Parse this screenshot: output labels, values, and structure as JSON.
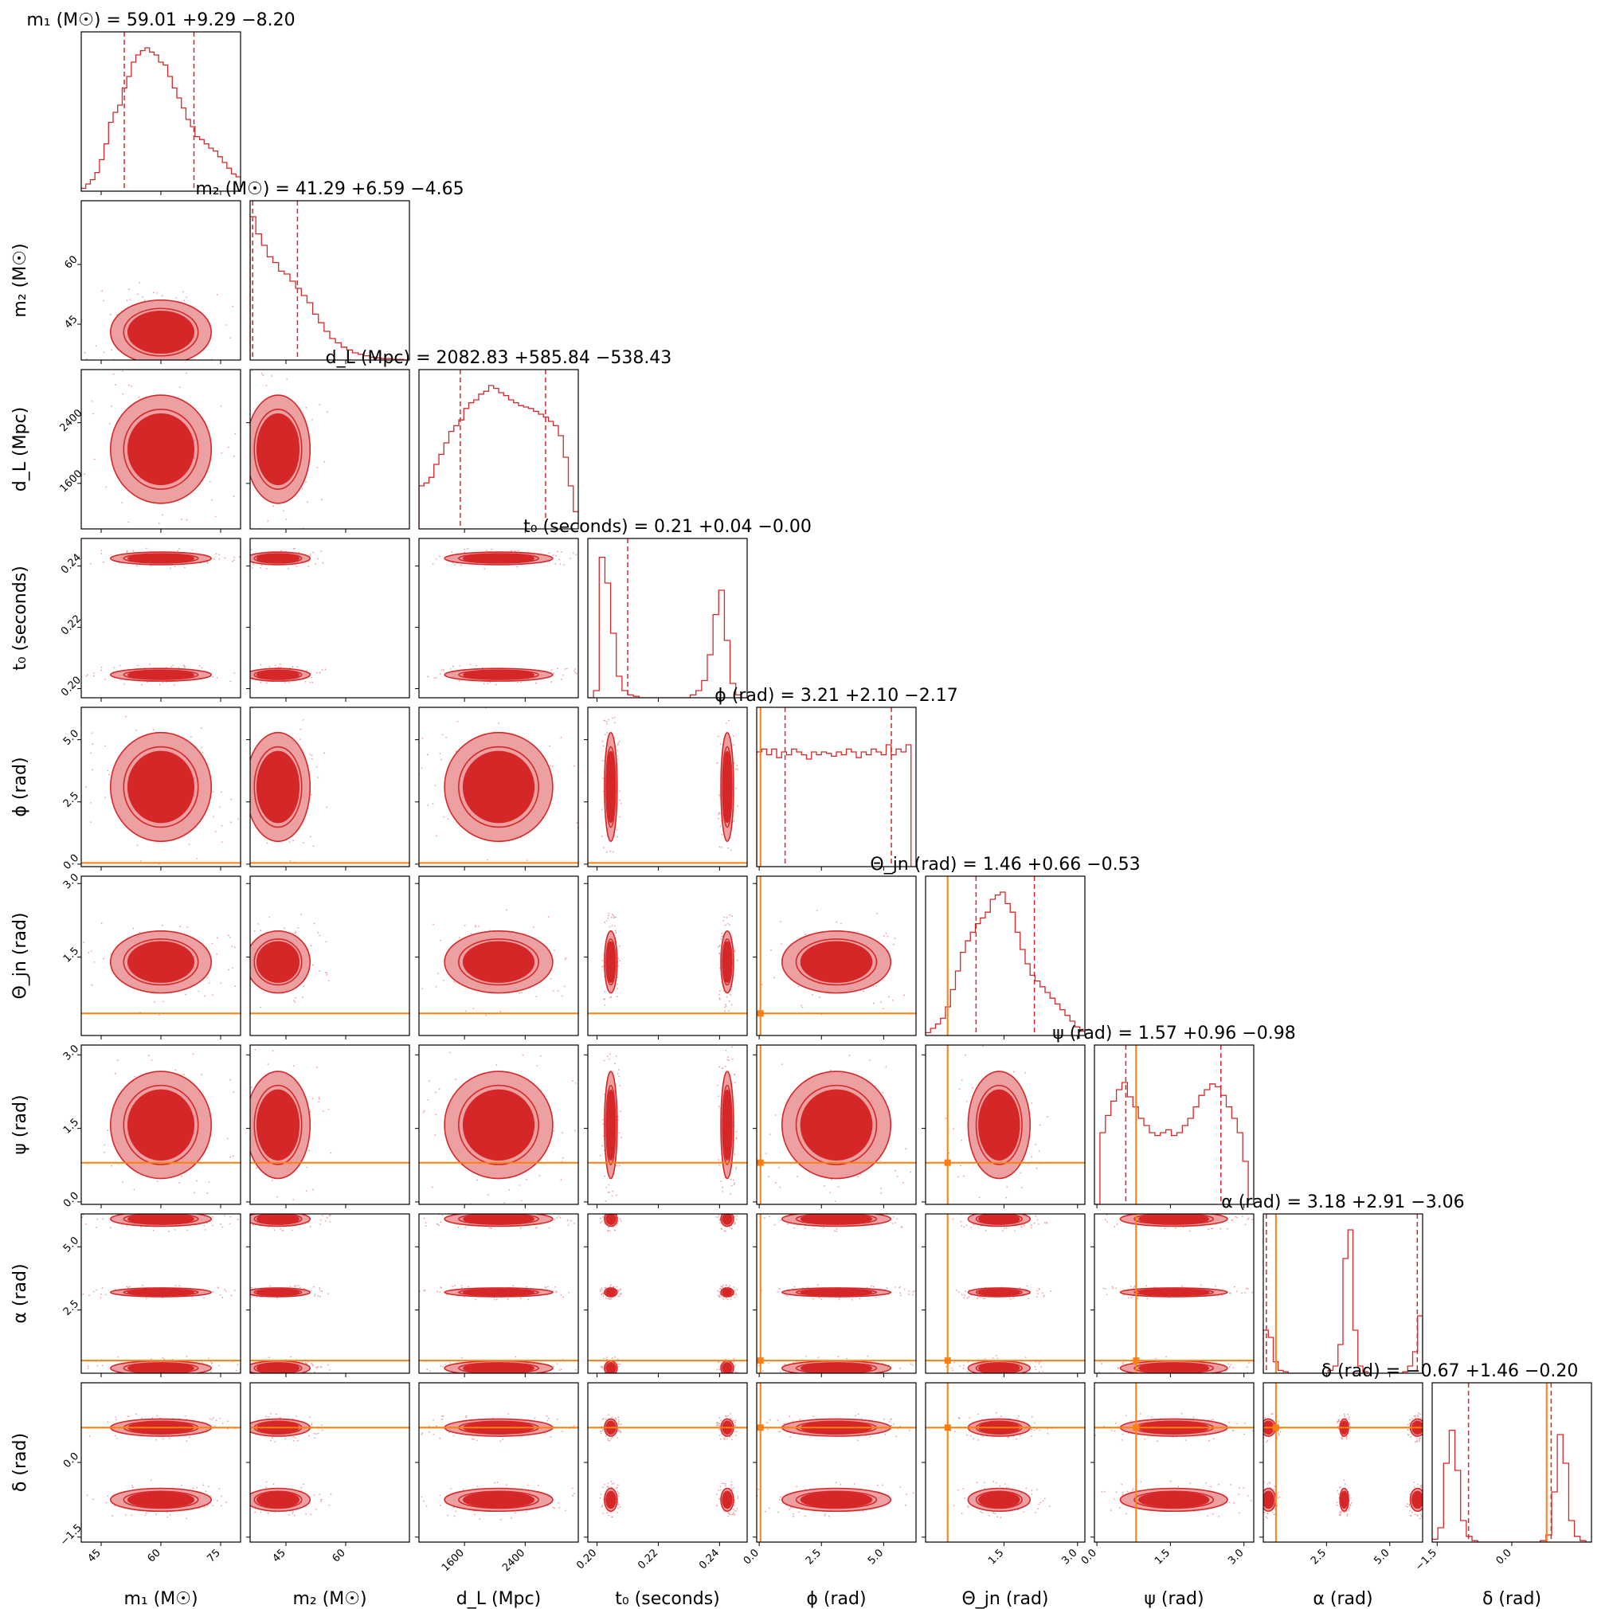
{
  "chart_data": {
    "type": "corner",
    "colors": {
      "posterior": "#d62728",
      "light_fill": "#eda0a2",
      "truth": "#ff7f0e"
    },
    "parameters": [
      {
        "id": "m1",
        "label": "m₁ (M☉)",
        "range": [
          40,
          80
        ],
        "ticks": [
          45,
          60,
          75
        ],
        "tick_labels": [
          "45",
          "60",
          "75"
        ],
        "title": "m₁ (M☉) = 59.01 +9.29 −8.20",
        "median": 59.01,
        "err_plus": 9.29,
        "err_minus": 8.2,
        "truth": null
      },
      {
        "id": "m2",
        "label": "m₂ (M☉)",
        "range": [
          36,
          76
        ],
        "ticks": [
          45,
          60
        ],
        "tick_labels": [
          "45",
          "60"
        ],
        "title": "m₂ (M☉) = 41.29 +6.59 −4.65",
        "median": 41.29,
        "err_plus": 6.59,
        "err_minus": 4.65,
        "truth": null
      },
      {
        "id": "dL",
        "label": "d_L (Mpc)",
        "range": [
          1000,
          3100
        ],
        "ticks": [
          1600,
          2400
        ],
        "tick_labels": [
          "1600",
          "2400"
        ],
        "title": "d_L (Mpc) = 2082.83 +585.84 −538.43",
        "median": 2082.83,
        "err_plus": 585.84,
        "err_minus": 538.43,
        "truth": null
      },
      {
        "id": "t0",
        "label": "t₀ (seconds)",
        "range": [
          0.197,
          0.249
        ],
        "ticks": [
          0.2,
          0.22,
          0.24
        ],
        "tick_labels": [
          "0.20",
          "0.22",
          "0.24"
        ],
        "title": "t₀ (seconds) = 0.21 +0.04 −0.00",
        "median": 0.21,
        "err_plus": 0.04,
        "err_minus": 0.0,
        "truth": null
      },
      {
        "id": "phi",
        "label": "ϕ (rad)",
        "range": [
          -0.1,
          6.3
        ],
        "ticks": [
          0.0,
          2.5,
          5.0
        ],
        "tick_labels": [
          "0.0",
          "2.5",
          "5.0"
        ],
        "title": "ϕ (rad) = 3.21 +2.10 −2.17",
        "median": 3.21,
        "err_plus": 2.1,
        "err_minus": 2.17,
        "truth": 0.05
      },
      {
        "id": "theta",
        "label": "Θ_jn (rad)",
        "range": [
          -0.1,
          3.15
        ],
        "ticks": [
          1.5,
          3.0
        ],
        "tick_labels": [
          "1.5",
          "3.0"
        ],
        "title": "Θ_jn (rad) = 1.46 +0.66 −0.53",
        "median": 1.46,
        "err_plus": 0.66,
        "err_minus": 0.53,
        "truth": 0.35
      },
      {
        "id": "psi",
        "label": "ψ (rad)",
        "range": [
          -0.05,
          3.2
        ],
        "ticks": [
          0.0,
          1.5,
          3.0
        ],
        "tick_labels": [
          "0.0",
          "1.5",
          "3.0"
        ],
        "title": "ψ (rad) = 1.57 +0.96 −0.98",
        "median": 1.57,
        "err_plus": 0.96,
        "err_minus": 0.98,
        "truth": 0.8
      },
      {
        "id": "alpha",
        "label": "α (rad)",
        "range": [
          0,
          6.3
        ],
        "ticks": [
          2.5,
          5.0
        ],
        "tick_labels": [
          "2.5",
          "5.0"
        ],
        "title": "α (rad) = 3.18 +2.91 −3.06",
        "median": 3.18,
        "err_plus": 2.91,
        "err_minus": 3.06,
        "truth": 0.5
      },
      {
        "id": "delta",
        "label": "δ (rad)",
        "range": [
          -1.6,
          1.6
        ],
        "ticks": [
          -1.5,
          0.0
        ],
        "tick_labels": [
          "−1.5",
          "0.0"
        ],
        "title": "δ (rad) = −0.67 +1.46 −0.20",
        "median": -0.67,
        "err_plus": 1.46,
        "err_minus": 0.2,
        "truth": 0.7
      }
    ],
    "histograms": {
      "m1": [
        0.02,
        0.05,
        0.08,
        0.13,
        0.22,
        0.33,
        0.48,
        0.55,
        0.6,
        0.72,
        0.8,
        0.9,
        0.95,
        0.98,
        1.0,
        0.97,
        0.95,
        0.9,
        0.88,
        0.8,
        0.72,
        0.65,
        0.58,
        0.5,
        0.45,
        0.38,
        0.36,
        0.33,
        0.3,
        0.28,
        0.24,
        0.2,
        0.16,
        0.12,
        0.1
      ],
      "m2": [
        1.0,
        0.88,
        0.8,
        0.72,
        0.68,
        0.62,
        0.6,
        0.55,
        0.5,
        0.45,
        0.4,
        0.32,
        0.26,
        0.2,
        0.15,
        0.12,
        0.09,
        0.07,
        0.05,
        0.04,
        0.03,
        0.02,
        0.015,
        0.01,
        0.01,
        0.005,
        0.005,
        0.0
      ],
      "dL": [
        0.3,
        0.32,
        0.36,
        0.45,
        0.52,
        0.6,
        0.68,
        0.72,
        0.76,
        0.84,
        0.88,
        0.9,
        0.94,
        0.96,
        1.0,
        0.98,
        0.95,
        0.93,
        0.9,
        0.88,
        0.86,
        0.85,
        0.84,
        0.82,
        0.8,
        0.78,
        0.75,
        0.72,
        0.65,
        0.5,
        0.3,
        0.12
      ],
      "t0": [
        0.0,
        0.05,
        0.98,
        0.8,
        0.45,
        0.15,
        0.05,
        0.02,
        0.01,
        0.0,
        0.0,
        0.0,
        0.0,
        0.0,
        0.0,
        0.0,
        0.0,
        0.0,
        0.02,
        0.05,
        0.12,
        0.3,
        0.58,
        0.75,
        0.4,
        0.1,
        0.02,
        0.0
      ],
      "phi": [
        0.8,
        0.82,
        0.78,
        0.82,
        0.76,
        0.8,
        0.78,
        0.82,
        0.8,
        0.78,
        0.75,
        0.8,
        0.78,
        0.8,
        0.79,
        0.77,
        0.8,
        0.78,
        0.82,
        0.8,
        0.76,
        0.8,
        0.78,
        0.82,
        0.8,
        0.78,
        0.85,
        0.78,
        0.82,
        0.8,
        0.85,
        0.0
      ],
      "theta": [
        0.02,
        0.05,
        0.08,
        0.12,
        0.2,
        0.32,
        0.45,
        0.58,
        0.66,
        0.72,
        0.78,
        0.82,
        0.86,
        0.95,
        0.98,
        1.0,
        0.92,
        0.86,
        0.72,
        0.6,
        0.5,
        0.42,
        0.38,
        0.34,
        0.3,
        0.26,
        0.22,
        0.18,
        0.14,
        0.1,
        0.06,
        0.03
      ],
      "psi": [
        0.0,
        0.5,
        0.62,
        0.72,
        0.8,
        0.85,
        0.75,
        0.68,
        0.6,
        0.55,
        0.5,
        0.48,
        0.5,
        0.52,
        0.48,
        0.5,
        0.55,
        0.6,
        0.68,
        0.76,
        0.8,
        0.84,
        0.82,
        0.76,
        0.68,
        0.6,
        0.5,
        0.3,
        0.0
      ],
      "alpha": [
        0.3,
        0.25,
        0.08,
        0.02,
        0.01,
        0.0,
        0.0,
        0.0,
        0.0,
        0.0,
        0.0,
        0.0,
        0.0,
        0.02,
        0.05,
        0.2,
        0.8,
        1.0,
        0.3,
        0.05,
        0.01,
        0.0,
        0.0,
        0.0,
        0.0,
        0.0,
        0.0,
        0.0,
        0.01,
        0.05,
        0.15,
        0.4
      ],
      "delta": [
        0.02,
        0.1,
        0.55,
        0.78,
        0.5,
        0.15,
        0.04,
        0.01,
        0.0,
        0.0,
        0.0,
        0.0,
        0.0,
        0.0,
        0.0,
        0.0,
        0.0,
        0.0,
        0.0,
        0.01,
        0.05,
        0.35,
        0.75,
        0.55,
        0.15,
        0.04,
        0.01,
        0.0
      ]
    },
    "modes": {
      "m1": [
        [
          60,
          11
        ]
      ],
      "m2": [
        [
          43,
          7
        ]
      ],
      "dL": [
        [
          2050,
          620
        ]
      ],
      "t0": [
        [
          0.2045,
          0.0018
        ],
        [
          0.2425,
          0.0018
        ]
      ],
      "phi": [
        [
          3.1,
          1.9
        ]
      ],
      "theta": [
        [
          1.4,
          0.55
        ]
      ],
      "psi": [
        [
          1.57,
          0.95
        ]
      ],
      "alpha": [
        [
          0.2,
          0.25
        ],
        [
          3.2,
          0.15
        ],
        [
          6.1,
          0.25
        ]
      ],
      "delta": [
        [
          -0.75,
          0.2
        ],
        [
          0.7,
          0.15
        ]
      ]
    }
  }
}
